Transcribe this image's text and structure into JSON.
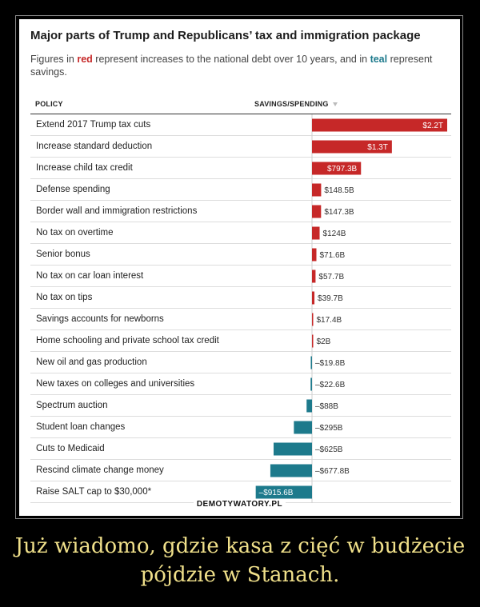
{
  "chart_data": {
    "type": "bar",
    "orientation": "horizontal",
    "title": "Major parts of Trump and Republicans’ tax and immigration package",
    "subtitle": {
      "prefix": "Figures in ",
      "red_word": "red",
      "middle": " represent increases to the national debt over 10 years, and in ",
      "teal_word": "teal",
      "suffix": " represent savings."
    },
    "column_headers": {
      "policy": "POLICY",
      "savings": "SAVINGS/SPENDING"
    },
    "unit": "billions of dollars",
    "colors": {
      "increase": "#c62828",
      "savings": "#1d7a8c"
    },
    "categories": [
      "Extend 2017 Trump tax cuts",
      "Increase standard deduction",
      "Increase child tax credit",
      "Defense spending",
      "Border wall and immigration restrictions",
      "No tax on overtime",
      "Senior bonus",
      "No tax on car loan interest",
      "No tax on tips",
      "Savings accounts for newborns",
      "Home schooling and private school tax credit",
      "New oil and gas production",
      "New taxes on colleges and universities",
      "Spectrum auction",
      "Student loan changes",
      "Cuts to Medicaid",
      "Rescind climate change money",
      "Raise SALT cap to $30,000*"
    ],
    "values": [
      2200,
      1300,
      797.3,
      148.5,
      147.3,
      124,
      71.6,
      57.7,
      39.7,
      17.4,
      2,
      -19.8,
      -22.6,
      -88,
      -295,
      -625,
      -677.8,
      -915.6
    ],
    "data_labels": [
      "$2.2T",
      "$1.3T",
      "$797.3B",
      "$148.5B",
      "$147.3B",
      "$124B",
      "$71.6B",
      "$57.7B",
      "$39.7B",
      "$17.4B",
      "$2B",
      "–$19.8B",
      "–$22.6B",
      "–$88B",
      "–$295B",
      "–$625B",
      "–$677.8B",
      "–$915.6B"
    ]
  },
  "watermark": "DEMOTYWATORY.PL",
  "caption": "Już wiadomo, gdzie kasa z cięć w budżecie pójdzie w Stanach."
}
